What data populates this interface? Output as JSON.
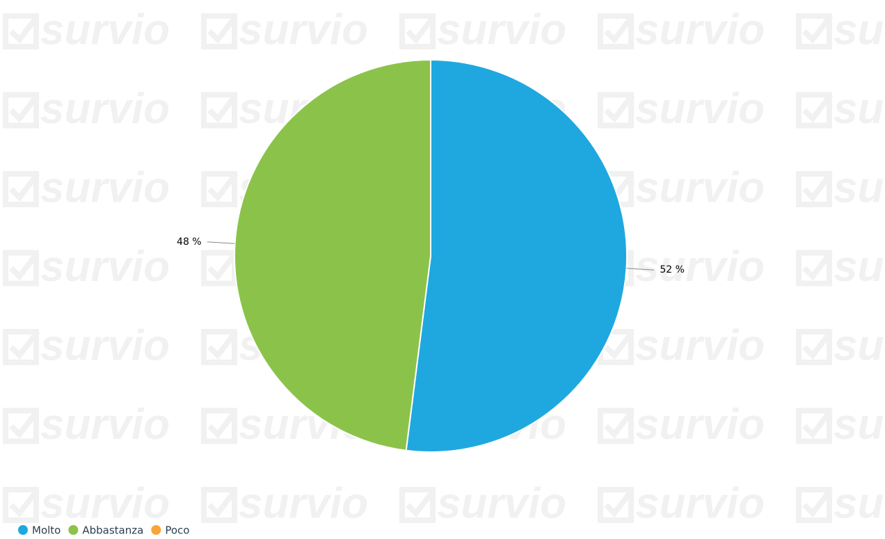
{
  "watermark": "survio",
  "chart_data": {
    "type": "pie",
    "categories": [
      "Molto",
      "Abbastanza",
      "Poco"
    ],
    "values": [
      52,
      48,
      0
    ],
    "value_labels": [
      "52 %",
      "48 %",
      null
    ],
    "colors": [
      "#1fa8df",
      "#8bc34a",
      "#f7a53a"
    ],
    "legend": "bottom-left"
  }
}
